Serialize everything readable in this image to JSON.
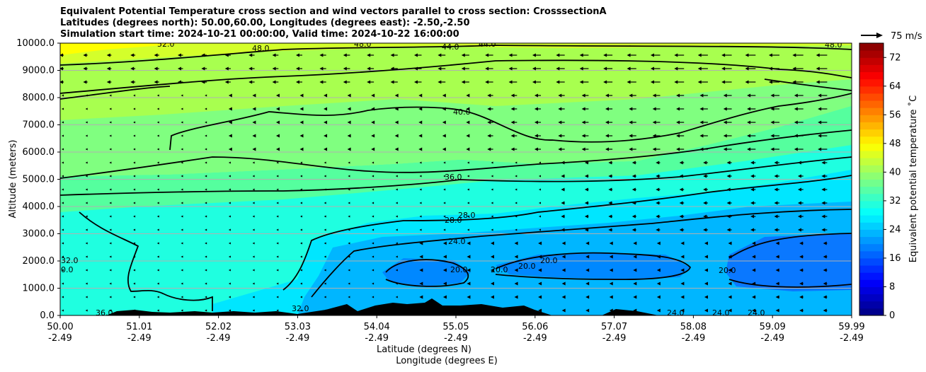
{
  "chart_data": {
    "type": "contour",
    "title_lines": [
      "Equivalent Potential Temperature cross section and wind vectors parallel to cross section: CrosssectionA",
      "Latitudes (degrees north): 50.00,60.00, Longitudes (degrees east): -2.50,-2.50",
      "Simulation start time: 2024-10-21 00:00:00, Valid time: 2024-10-22 16:00:00"
    ],
    "ylabel": "Altitude (meters)",
    "xlabel_lines": [
      "Latitude (degrees N)",
      "Longitude (degrees E)"
    ],
    "ylim": [
      0,
      10000
    ],
    "y_ticks": [
      "0.0",
      "1000.0",
      "2000.0",
      "3000.0",
      "4000.0",
      "5000.0",
      "6000.0",
      "7000.0",
      "8000.0",
      "9000.0",
      "10000.0"
    ],
    "x_ticks": [
      {
        "lat": "50.00",
        "lon": "-2.49"
      },
      {
        "lat": "51.01",
        "lon": "-2.49"
      },
      {
        "lat": "52.02",
        "lon": "-2.49"
      },
      {
        "lat": "53.03",
        "lon": "-2.49"
      },
      {
        "lat": "54.04",
        "lon": "-2.49"
      },
      {
        "lat": "55.05",
        "lon": "-2.49"
      },
      {
        "lat": "56.06",
        "lon": "-2.49"
      },
      {
        "lat": "57.07",
        "lon": "-2.49"
      },
      {
        "lat": "58.08",
        "lon": "-2.49"
      },
      {
        "lat": "59.09",
        "lon": "-2.49"
      },
      {
        "lat": "59.99",
        "lon": "-2.49"
      }
    ],
    "colorbar": {
      "label": "Equivalent potential temperature ˚C",
      "min": 0,
      "max": 76,
      "step": 2,
      "ticks": [
        "0",
        "8",
        "16",
        "24",
        "32",
        "40",
        "48",
        "56",
        "64",
        "72"
      ]
    },
    "quiver_key": "75 m/s",
    "contour_labels": [
      "52.0",
      "48.0",
      "48.0",
      "44.0",
      "44.0",
      "48.0",
      "40.0",
      "36.0",
      "28.0",
      "28.0",
      "24.0",
      "20.0",
      "20.0",
      "20.0",
      "20.0",
      "20.0",
      "24.0",
      "24.0",
      "24.0",
      "32.0",
      "36.0",
      "32.0",
      "0.0"
    ]
  }
}
